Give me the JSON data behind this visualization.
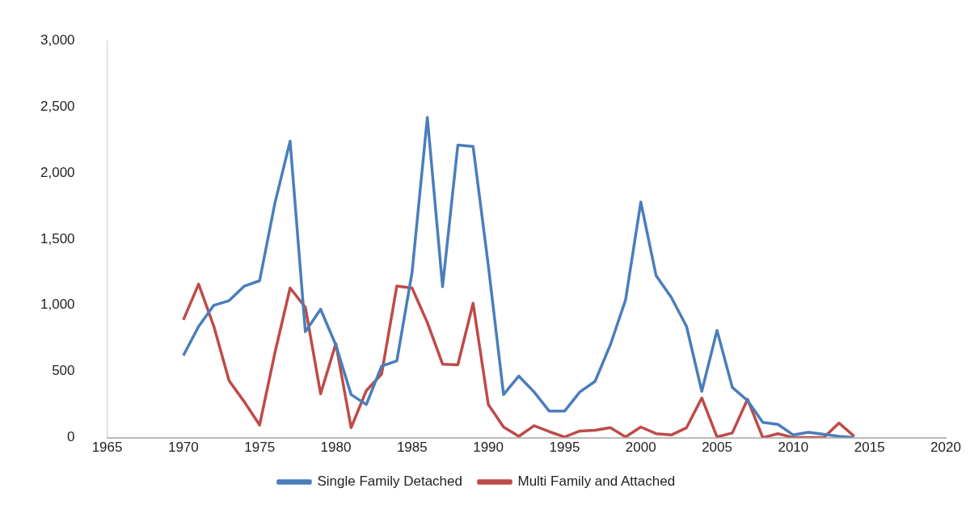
{
  "chart_data": {
    "type": "line",
    "x": [
      1970,
      1971,
      1972,
      1973,
      1974,
      1975,
      1976,
      1977,
      1978,
      1979,
      1980,
      1981,
      1982,
      1983,
      1984,
      1985,
      1986,
      1987,
      1988,
      1989,
      1990,
      1991,
      1992,
      1993,
      1994,
      1995,
      1996,
      1997,
      1998,
      1999,
      2000,
      2001,
      2002,
      2003,
      2004,
      2005,
      2006,
      2007,
      2008,
      2009,
      2010,
      2011,
      2012,
      2013,
      2014
    ],
    "series": [
      {
        "name": "Single Family Detached",
        "color": "#4a7ebb",
        "values": [
          620,
          840,
          1000,
          1035,
          1145,
          1185,
          1770,
          2240,
          800,
          970,
          700,
          325,
          250,
          540,
          580,
          1250,
          2420,
          1140,
          2210,
          2200,
          1300,
          325,
          465,
          345,
          200,
          200,
          345,
          425,
          700,
          1040,
          1780,
          1225,
          1060,
          840,
          350,
          810,
          380,
          280,
          115,
          100,
          20,
          40,
          25,
          10,
          0
        ]
      },
      {
        "name": "Multi Family and Attached",
        "color": "#be4b48",
        "values": [
          890,
          1160,
          840,
          430,
          270,
          95,
          640,
          1130,
          985,
          330,
          710,
          75,
          355,
          480,
          1145,
          1130,
          870,
          555,
          550,
          1015,
          250,
          80,
          10,
          90,
          45,
          5,
          50,
          55,
          75,
          5,
          80,
          30,
          20,
          75,
          300,
          5,
          35,
          290,
          0,
          30,
          0,
          0,
          0,
          110,
          10
        ]
      }
    ],
    "xlim": [
      1965,
      2020
    ],
    "xticks": [
      1965,
      1970,
      1975,
      1980,
      1985,
      1990,
      1995,
      2000,
      2005,
      2010,
      2015,
      2020
    ],
    "ylim": [
      0,
      3000
    ],
    "yticks": [
      {
        "value": 0,
        "label": "0"
      },
      {
        "value": 500,
        "label": "500"
      },
      {
        "value": 1000,
        "label": "1,000"
      },
      {
        "value": 1500,
        "label": "1,500"
      },
      {
        "value": 2000,
        "label": "2,000"
      },
      {
        "value": 2500,
        "label": "2,500"
      },
      {
        "value": 3000,
        "label": "3,000"
      }
    ],
    "grid": false,
    "legend": "bottom",
    "marker": "none",
    "line_style": "solid"
  }
}
